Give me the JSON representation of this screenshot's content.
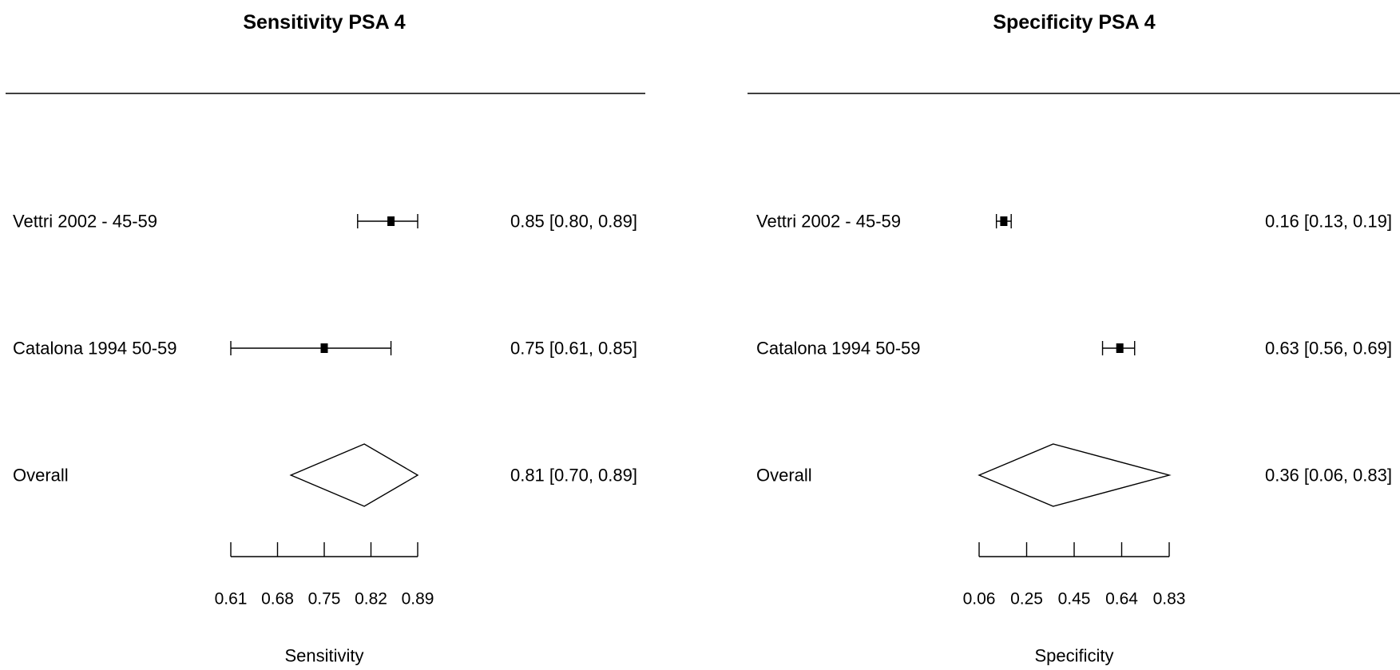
{
  "chart_data": [
    {
      "type": "forest",
      "title": "Sensitivity PSA 4",
      "xlabel": "Sensitivity",
      "xlim": [
        0.61,
        0.89
      ],
      "ticks": [
        "0.61",
        "0.68",
        "0.75",
        "0.82",
        "0.89"
      ],
      "rows": [
        {
          "label": "Vettri 2002 - 45-59",
          "estimate": 0.85,
          "lower": 0.8,
          "upper": 0.89,
          "text": "0.85 [0.80, 0.89]"
        },
        {
          "label": "Catalona 1994 50-59",
          "estimate": 0.75,
          "lower": 0.61,
          "upper": 0.85,
          "text": "0.75 [0.61, 0.85]"
        }
      ],
      "overall": {
        "label": "Overall",
        "estimate": 0.81,
        "lower": 0.7,
        "upper": 0.89,
        "text": "0.81 [0.70, 0.89]"
      }
    },
    {
      "type": "forest",
      "title": "Specificity PSA 4",
      "xlabel": "Specificity",
      "xlim": [
        0.06,
        0.83
      ],
      "ticks": [
        "0.06",
        "0.25",
        "0.45",
        "0.64",
        "0.83"
      ],
      "rows": [
        {
          "label": "Vettri 2002 - 45-59",
          "estimate": 0.16,
          "lower": 0.13,
          "upper": 0.19,
          "text": "0.16 [0.13, 0.19]"
        },
        {
          "label": "Catalona 1994 50-59",
          "estimate": 0.63,
          "lower": 0.56,
          "upper": 0.69,
          "text": "0.63 [0.56, 0.69]"
        }
      ],
      "overall": {
        "label": "Overall",
        "estimate": 0.36,
        "lower": 0.06,
        "upper": 0.83,
        "text": "0.36 [0.06, 0.83]"
      }
    }
  ]
}
